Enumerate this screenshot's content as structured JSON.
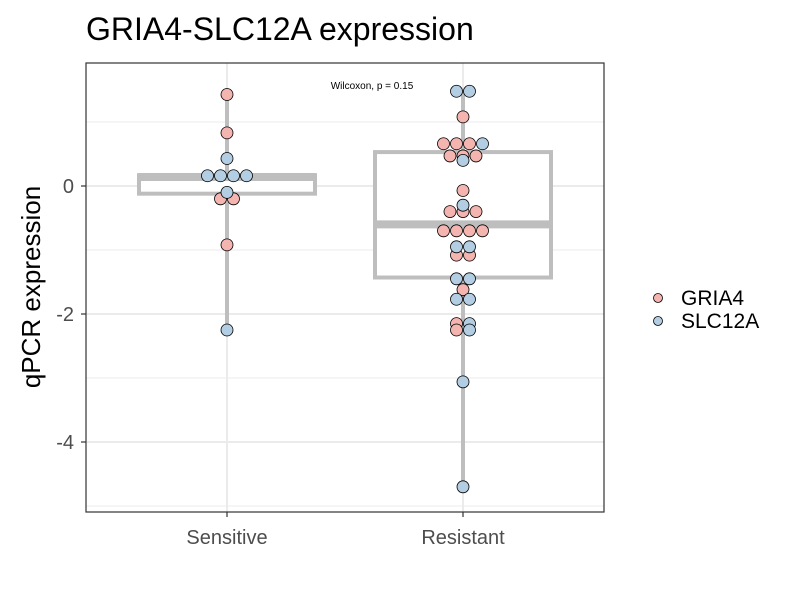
{
  "chart_data": {
    "type": "scatter",
    "subtype": "boxplot-with-dotplot",
    "title": "GRIA4-SLC12A expression",
    "xlabel": "",
    "ylabel": "qPCR expression",
    "categories": [
      "Sensitive",
      "Resistant"
    ],
    "y_ticks": [
      0,
      -2,
      -4
    ],
    "y_tick_labels": [
      "0",
      "-2",
      "-4"
    ],
    "ylim": [
      -5.1,
      1.9
    ],
    "grid": true,
    "legend_position": "right",
    "annotation": "Wilcoxon, p = 0.15",
    "boxes": [
      {
        "category": "Sensitive",
        "q1": -0.12,
        "median": 0.14,
        "q3": 0.17,
        "whisker_low": -2.25,
        "whisker_high": 1.43
      },
      {
        "category": "Resistant",
        "q1": -1.43,
        "median": -0.6,
        "q3": 0.53,
        "whisker_low": -4.7,
        "whisker_high": 1.48
      }
    ],
    "series": [
      {
        "name": "GRIA4",
        "color": "#F4B4B0",
        "points": [
          {
            "x": "Sensitive",
            "y": 1.43
          },
          {
            "x": "Sensitive",
            "y": 0.83
          },
          {
            "x": "Sensitive",
            "y": -0.2
          },
          {
            "x": "Sensitive",
            "y": -0.2
          },
          {
            "x": "Sensitive",
            "y": -0.92
          },
          {
            "x": "Resistant",
            "y": 1.08
          },
          {
            "x": "Resistant",
            "y": 0.66
          },
          {
            "x": "Resistant",
            "y": 0.66
          },
          {
            "x": "Resistant",
            "y": 0.66
          },
          {
            "x": "Resistant",
            "y": 0.47
          },
          {
            "x": "Resistant",
            "y": 0.47
          },
          {
            "x": "Resistant",
            "y": 0.47
          },
          {
            "x": "Resistant",
            "y": -0.07
          },
          {
            "x": "Resistant",
            "y": -0.4
          },
          {
            "x": "Resistant",
            "y": -0.4
          },
          {
            "x": "Resistant",
            "y": -0.4
          },
          {
            "x": "Resistant",
            "y": -0.7
          },
          {
            "x": "Resistant",
            "y": -0.7
          },
          {
            "x": "Resistant",
            "y": -0.7
          },
          {
            "x": "Resistant",
            "y": -0.7
          },
          {
            "x": "Resistant",
            "y": -1.08
          },
          {
            "x": "Resistant",
            "y": -1.08
          },
          {
            "x": "Resistant",
            "y": -1.62
          },
          {
            "x": "Resistant",
            "y": -2.15
          },
          {
            "x": "Resistant",
            "y": -2.25
          }
        ]
      },
      {
        "name": "SLC12A",
        "color": "#B3CDE3",
        "points": [
          {
            "x": "Sensitive",
            "y": 0.43
          },
          {
            "x": "Sensitive",
            "y": 0.16
          },
          {
            "x": "Sensitive",
            "y": 0.16
          },
          {
            "x": "Sensitive",
            "y": 0.16
          },
          {
            "x": "Sensitive",
            "y": 0.16
          },
          {
            "x": "Sensitive",
            "y": -0.1
          },
          {
            "x": "Sensitive",
            "y": -2.25
          },
          {
            "x": "Resistant",
            "y": 1.48
          },
          {
            "x": "Resistant",
            "y": 1.48
          },
          {
            "x": "Resistant",
            "y": 0.66
          },
          {
            "x": "Resistant",
            "y": 0.4
          },
          {
            "x": "Resistant",
            "y": -0.3
          },
          {
            "x": "Resistant",
            "y": -0.95
          },
          {
            "x": "Resistant",
            "y": -0.95
          },
          {
            "x": "Resistant",
            "y": -1.45
          },
          {
            "x": "Resistant",
            "y": -1.45
          },
          {
            "x": "Resistant",
            "y": -1.77
          },
          {
            "x": "Resistant",
            "y": -1.77
          },
          {
            "x": "Resistant",
            "y": -2.15
          },
          {
            "x": "Resistant",
            "y": -2.25
          },
          {
            "x": "Resistant",
            "y": -3.06
          },
          {
            "x": "Resistant",
            "y": -4.7
          }
        ]
      }
    ],
    "colors": {
      "box": "#BEBEBE",
      "grid": "#EBEBEB",
      "panel_border": "#333333",
      "point_outline": "#000000"
    }
  }
}
